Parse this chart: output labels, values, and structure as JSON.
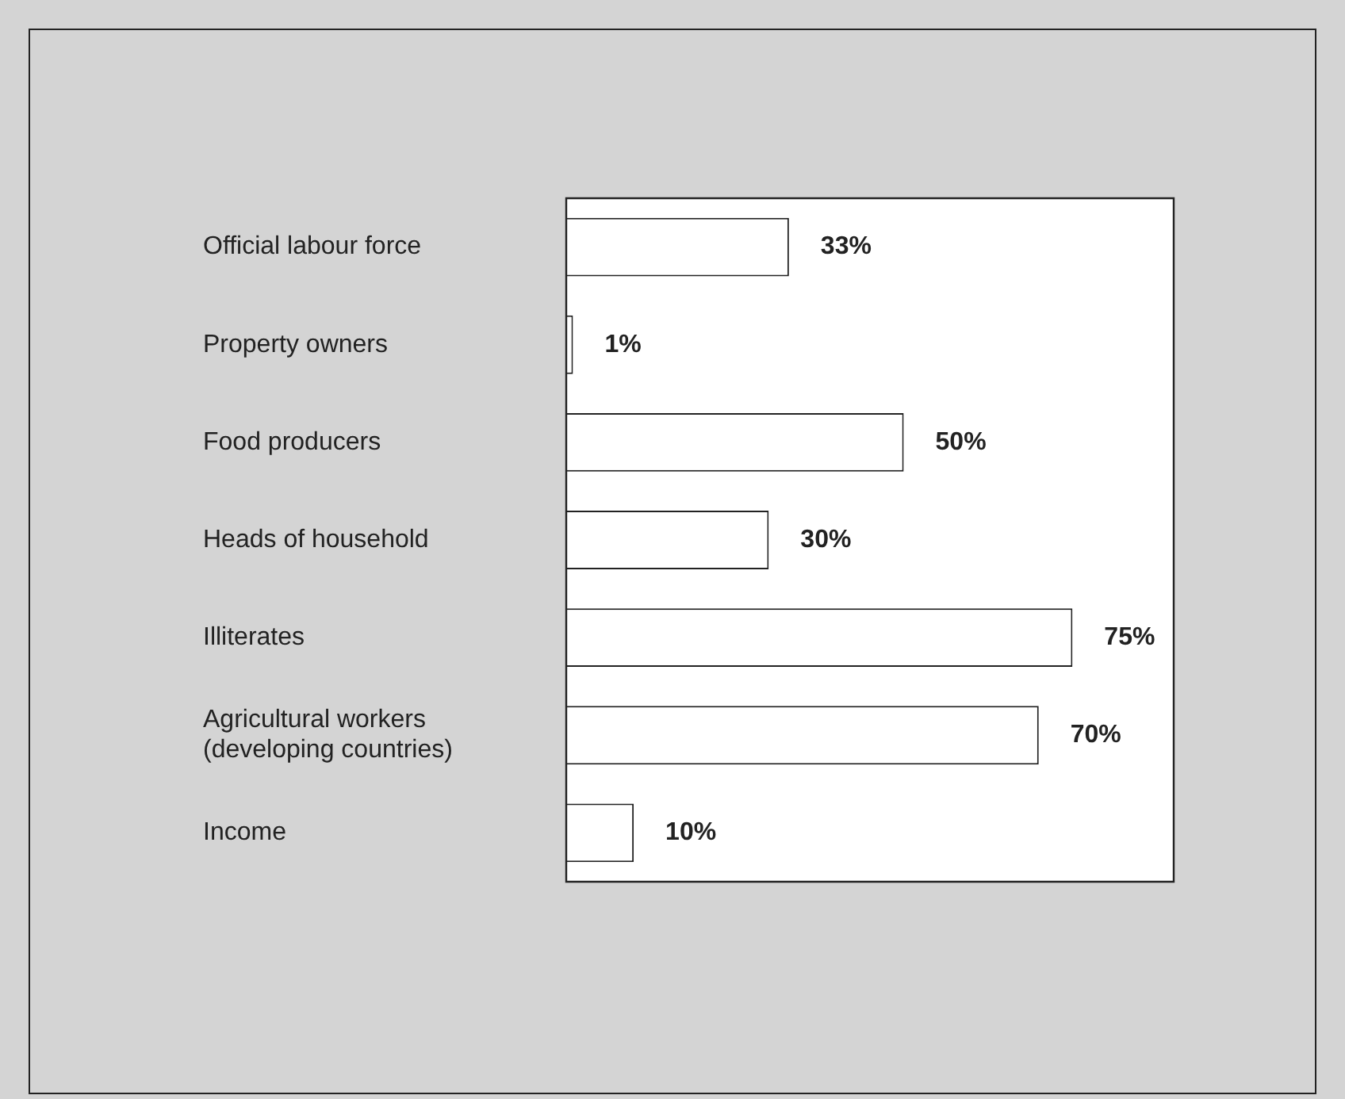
{
  "chart_data": {
    "type": "bar",
    "orientation": "horizontal",
    "categories": [
      "Official labour force",
      "Property owners",
      "Food producers",
      "Heads of household",
      "Illiterates",
      "Agricultural workers (developing countries)",
      "Income"
    ],
    "values": [
      33,
      1,
      50,
      30,
      75,
      70,
      10
    ],
    "value_labels": [
      "33%",
      "1%",
      "50%",
      "30%",
      "75%",
      "70%",
      "10%"
    ],
    "color": "#ffffff",
    "tick_labels": "y",
    "legend": false
  }
}
